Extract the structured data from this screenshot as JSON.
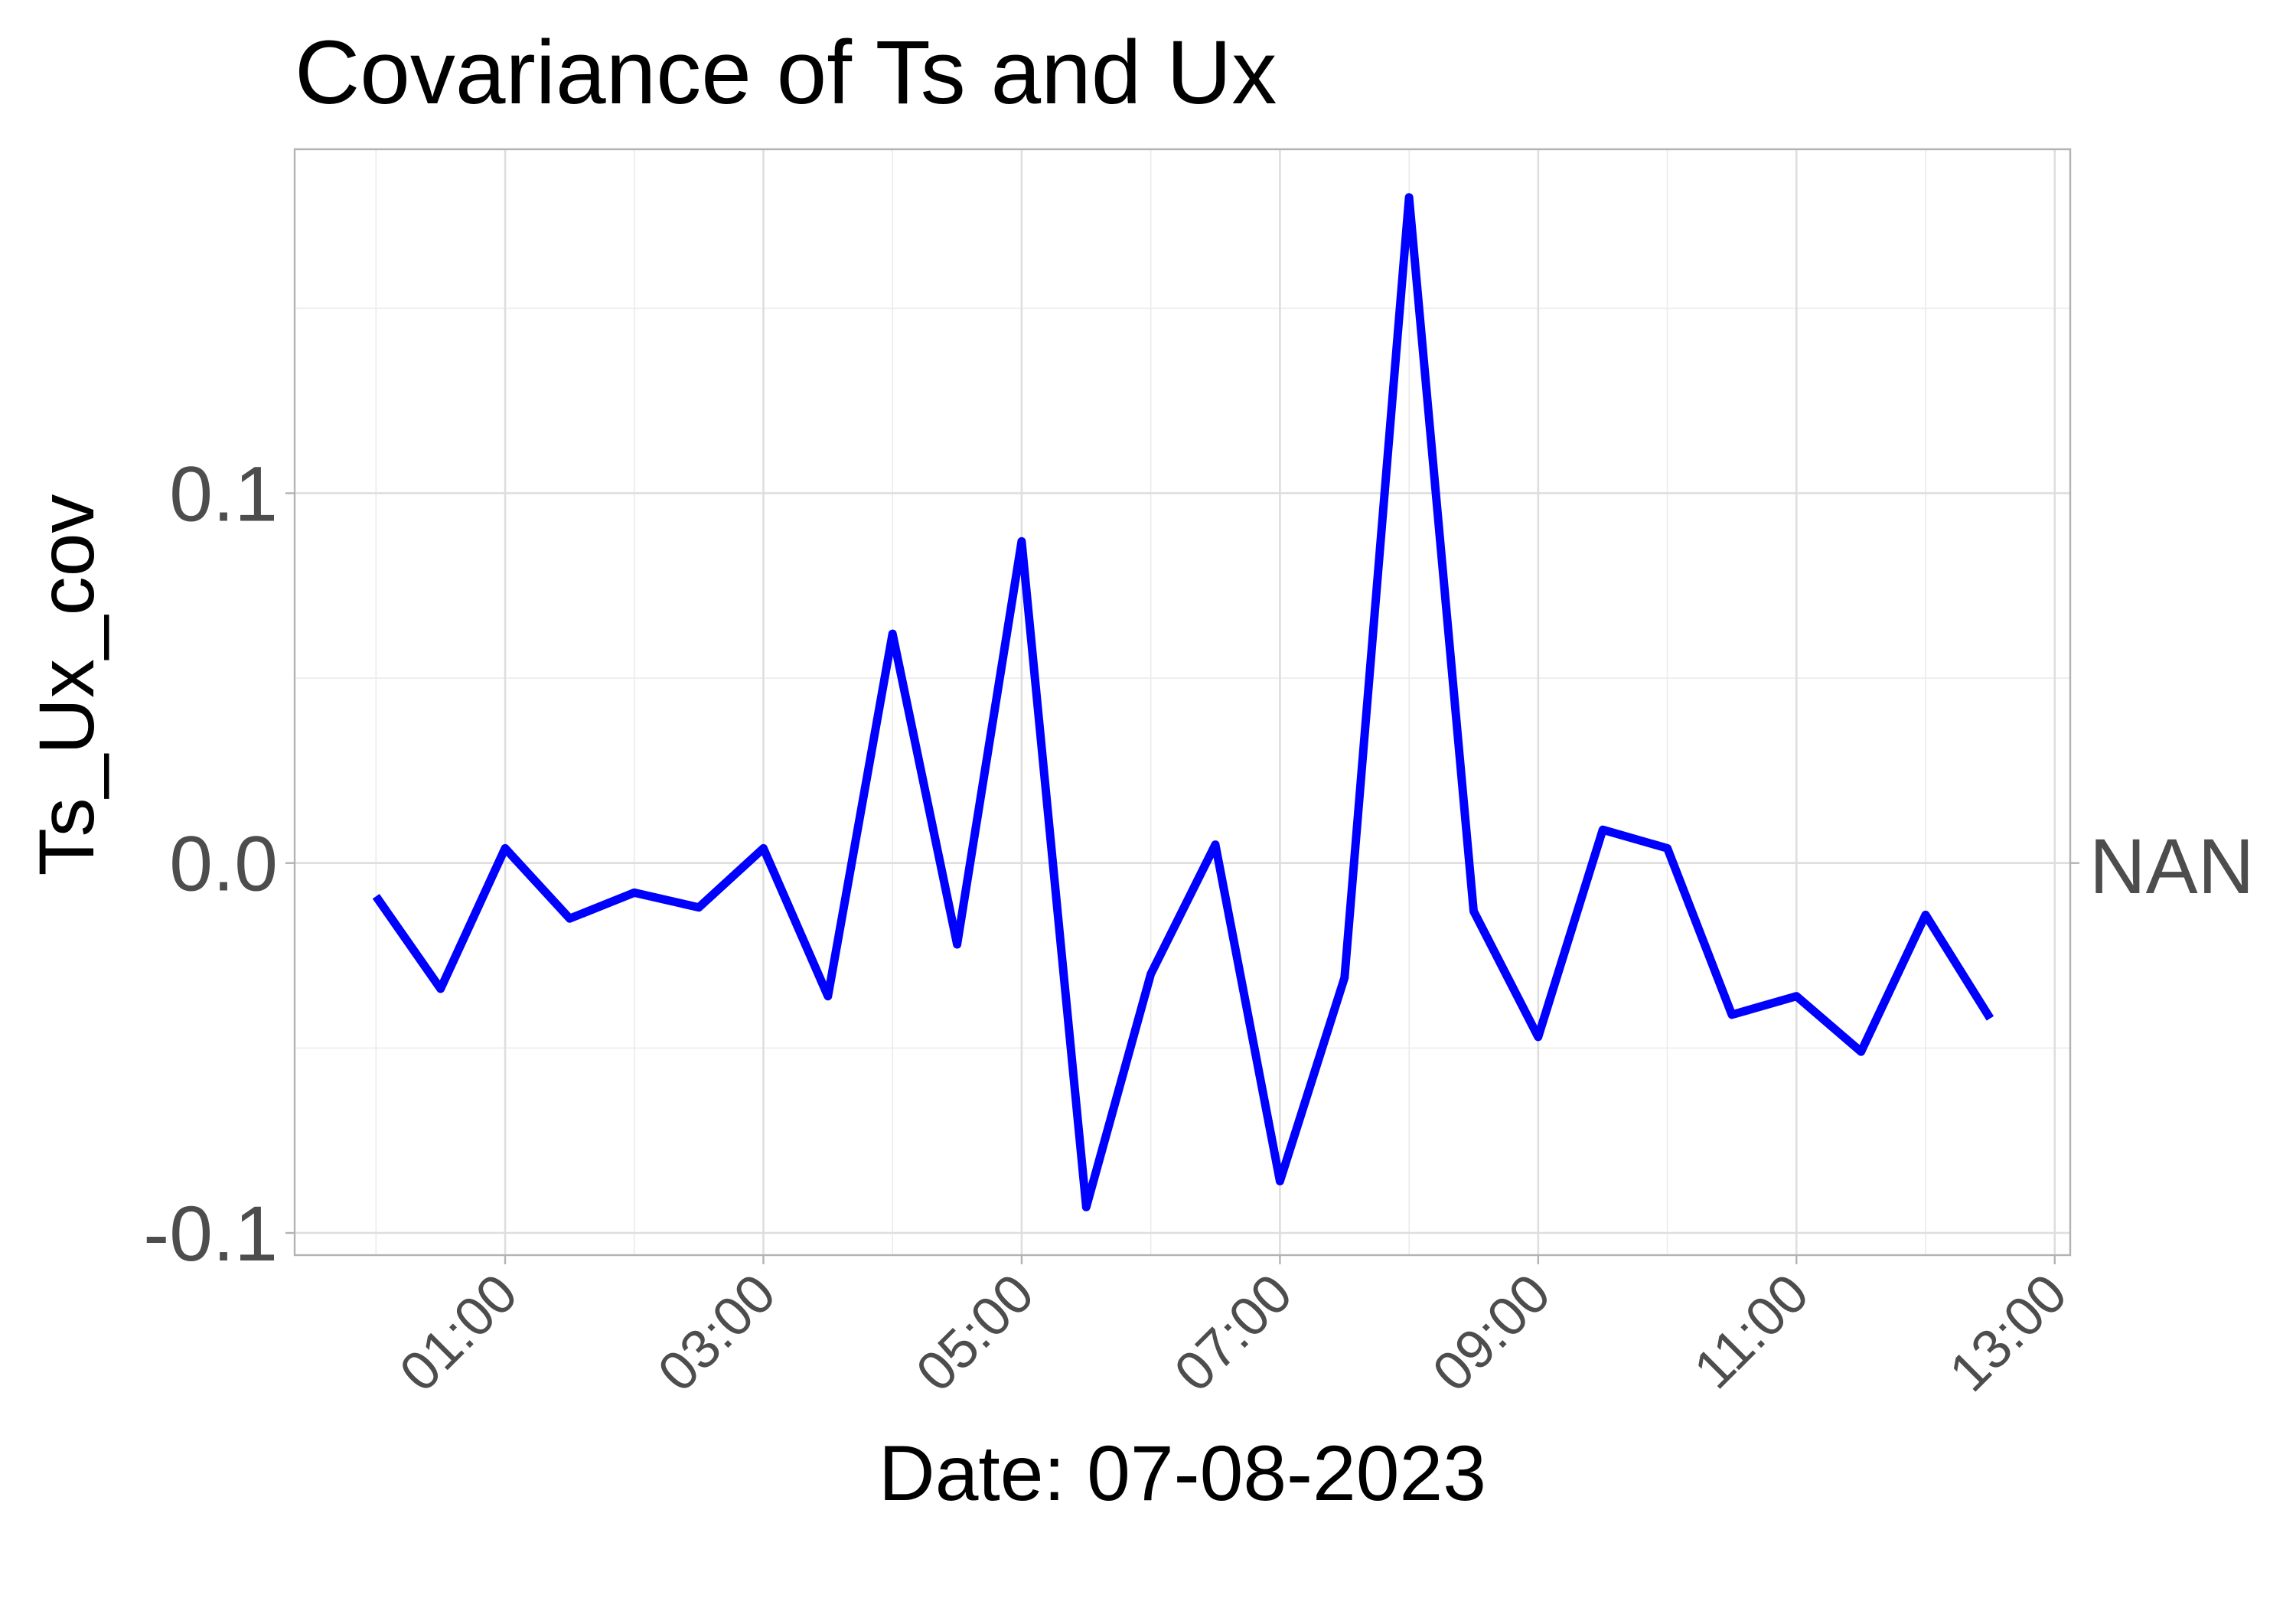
{
  "chart_data": {
    "type": "line",
    "title": "Covariance of Ts and Ux",
    "xlabel": "Date: 07-08-2023",
    "ylabel": "Ts_Ux_cov",
    "secondary_y_label": "NAN",
    "x_tick_labels": [
      "01:00",
      "03:00",
      "05:00",
      "07:00",
      "09:00",
      "11:00",
      "13:00"
    ],
    "x_tick_hours": [
      1,
      3,
      5,
      7,
      9,
      11,
      13
    ],
    "y_tick_labels": [
      "-0.1",
      "0.0",
      "0.1"
    ],
    "y_ticks": [
      -0.1,
      0.0,
      0.1
    ],
    "xlim_hours": [
      -0.63,
      13.12
    ],
    "ylim": [
      -0.106,
      0.193
    ],
    "grid": true,
    "line_color": "#0000ff",
    "series": [
      {
        "x_hours": [
          0,
          0.5,
          1,
          1.5,
          2,
          2.5,
          3,
          3.5,
          4,
          4.5,
          5,
          5.5,
          6,
          6.5,
          7,
          7.5,
          8,
          8.5,
          9,
          9.5,
          10,
          10.5,
          11,
          11.5,
          12,
          12.5
        ],
        "x": [
          "00:00",
          "00:30",
          "01:00",
          "01:30",
          "02:00",
          "02:30",
          "03:00",
          "03:30",
          "04:00",
          "04:30",
          "05:00",
          "05:30",
          "06:00",
          "06:30",
          "07:00",
          "07:30",
          "08:00",
          "08:30",
          "09:00",
          "09:30",
          "10:00",
          "10:30",
          "11:00",
          "11:30",
          "12:00",
          "12:30"
        ],
        "values": [
          -0.009,
          -0.034,
          0.004,
          -0.015,
          -0.008,
          -0.012,
          0.004,
          -0.036,
          0.062,
          -0.022,
          0.087,
          -0.093,
          -0.03,
          0.005,
          -0.086,
          -0.031,
          0.18,
          -0.013,
          -0.047,
          0.009,
          0.004,
          -0.041,
          -0.036,
          -0.051,
          -0.014,
          -0.042
        ]
      }
    ]
  }
}
